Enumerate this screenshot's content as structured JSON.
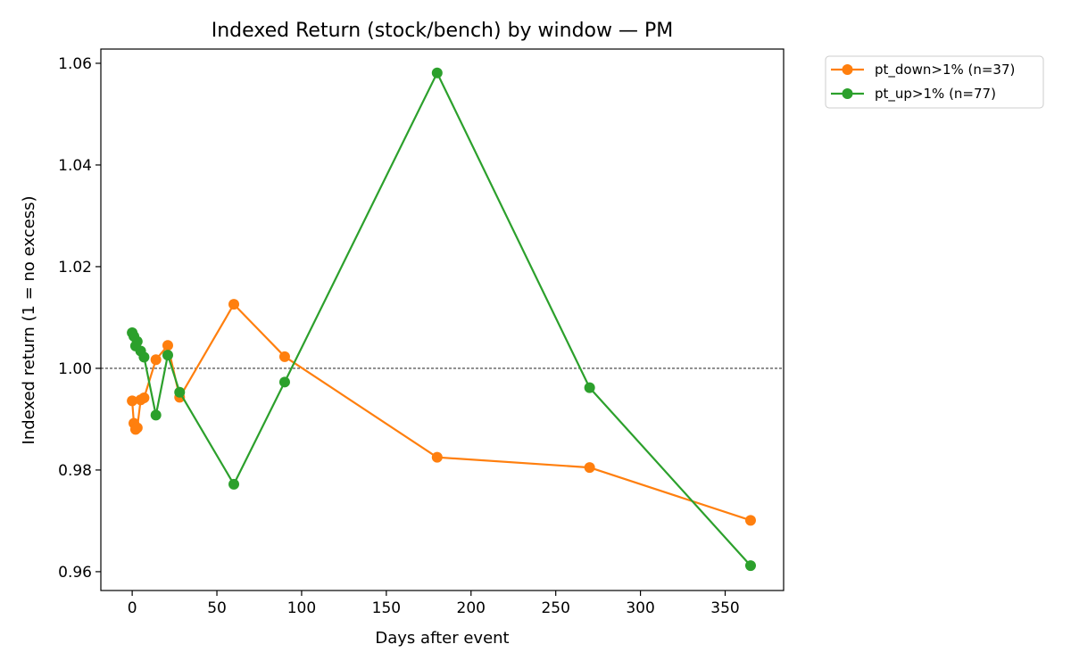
{
  "chart_data": {
    "type": "line",
    "title": "Indexed Return (stock/bench) by window — PM",
    "xlabel": "Days after event",
    "ylabel": "Indexed return (1 = no excess)",
    "xlim": [
      -18.5,
      384.5
    ],
    "ylim": [
      0.9563,
      1.0628
    ],
    "xticks": [
      0,
      50,
      100,
      150,
      200,
      250,
      300,
      350
    ],
    "yticks": [
      0.96,
      0.98,
      1.0,
      1.02,
      1.04,
      1.06
    ],
    "xtick_labels": [
      "0",
      "50",
      "100",
      "150",
      "200",
      "250",
      "300",
      "350"
    ],
    "ytick_labels": [
      "0.96",
      "0.98",
      "1.00",
      "1.02",
      "1.04",
      "1.06"
    ],
    "reference_line": {
      "y": 1.0,
      "style": "dashed",
      "color": "#000000"
    },
    "grid": false,
    "legend_position": "outside-top-right",
    "series": [
      {
        "name": "pt_down>1% (n=37)",
        "color": "#ff7f0e",
        "x": [
          0,
          1,
          2,
          3,
          5,
          7,
          14,
          21,
          28,
          60,
          90,
          180,
          270,
          365
        ],
        "y": [
          0.9936,
          0.9892,
          0.988,
          0.9883,
          0.9938,
          0.9942,
          1.0017,
          1.0045,
          0.9943,
          1.0126,
          1.0023,
          0.9825,
          0.9805,
          0.9701
        ]
      },
      {
        "name": "pt_up>1% (n=77)",
        "color": "#2ca02c",
        "x": [
          0,
          1,
          2,
          3,
          5,
          7,
          14,
          21,
          28,
          60,
          90,
          180,
          270,
          365
        ],
        "y": [
          1.007,
          1.0063,
          1.0044,
          1.0053,
          1.0034,
          1.0022,
          0.9908,
          1.0026,
          0.9953,
          0.9772,
          0.9973,
          1.0581,
          0.9962,
          0.9612
        ]
      }
    ]
  }
}
